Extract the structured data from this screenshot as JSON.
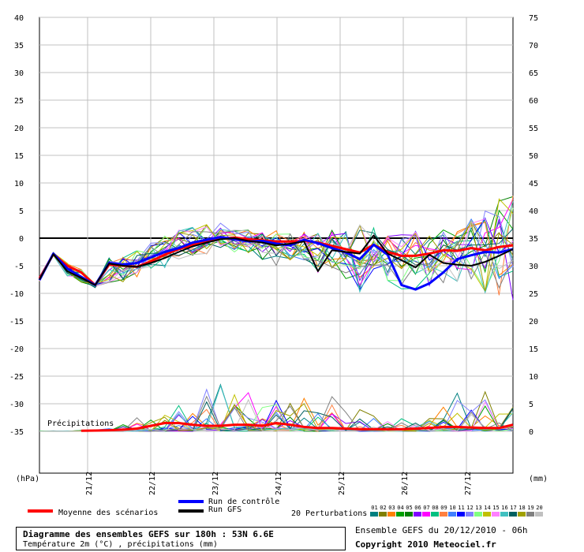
{
  "chart_data": {
    "type": "line",
    "left_axis": {
      "label": "(hPa)",
      "ticks": [
        40,
        35,
        30,
        25,
        20,
        15,
        10,
        5,
        0,
        -5,
        -10,
        -15,
        -20,
        -25,
        -30,
        -35
      ],
      "range": [
        -35,
        40
      ]
    },
    "right_axis": {
      "label": "(mm)",
      "ticks": [
        75,
        70,
        65,
        60,
        55,
        50,
        45,
        40,
        35,
        30,
        25,
        20,
        15,
        10,
        5,
        0
      ],
      "range": [
        0,
        75
      ]
    },
    "x_labels": [
      "21/12",
      "22/12",
      "23/12",
      "24/12",
      "25/12",
      "26/12",
      "27/12"
    ],
    "x_step_hours": 6,
    "precip_label": "Précipitations",
    "series": [
      {
        "name": "Moyenne des scénarios",
        "kind": "temperature",
        "color": "#ff0000",
        "width": 3,
        "values": [
          -7.3,
          -2.9,
          -5.0,
          -6.2,
          -8.5,
          -4.8,
          -5.0,
          -5.2,
          -4.2,
          -3.0,
          -2.0,
          -1.2,
          -0.6,
          -0.1,
          0.1,
          -0.2,
          -0.4,
          -0.6,
          -0.6,
          -0.5,
          -0.8,
          -1.4,
          -2.0,
          -2.6,
          -1.2,
          -2.5,
          -3.2,
          -3.2,
          -2.8,
          -2.2,
          -2.3,
          -1.8,
          -2.2,
          -1.6,
          -1.3
        ]
      },
      {
        "name": "Run de contrôle",
        "kind": "temperature",
        "color": "#0000ff",
        "width": 3,
        "values": [
          -7.6,
          -2.8,
          -5.5,
          -7.0,
          -8.5,
          -4.5,
          -4.8,
          -4.5,
          -3.5,
          -2.5,
          -1.8,
          -0.8,
          -0.3,
          0.2,
          -0.2,
          -0.6,
          -0.5,
          -1.0,
          -1.3,
          -0.3,
          -0.9,
          -1.8,
          -2.6,
          -3.8,
          -1.2,
          -3.0,
          -8.5,
          -9.3,
          -8.2,
          -6.2,
          -3.8,
          -3.1,
          -2.5,
          -2.6,
          -2.0
        ]
      },
      {
        "name": "Run GFS",
        "kind": "temperature",
        "color": "#000000",
        "width": 2,
        "values": [
          -7.5,
          -2.9,
          -6.0,
          -7.2,
          -8.5,
          -4.6,
          -5.0,
          -5.2,
          -4.5,
          -3.6,
          -2.5,
          -1.5,
          -0.8,
          -0.2,
          0.0,
          -0.5,
          -0.8,
          -1.3,
          -1.0,
          -0.6,
          -6.0,
          -2.2,
          -2.5,
          -2.8,
          0.5,
          -2.8,
          -4.0,
          -5.3,
          -3.0,
          -4.5,
          -4.8,
          -5.0,
          -4.3,
          -3.2,
          -2.0
        ]
      },
      {
        "name": "Moyenne des scénarios",
        "kind": "precipitation",
        "color": "#ff0000",
        "width": 3,
        "values": [
          0.1,
          0.1,
          0.1,
          0.1,
          0.15,
          0.2,
          0.3,
          0.5,
          1.0,
          1.5,
          1.5,
          1.2,
          1.0,
          1.0,
          1.2,
          1.2,
          1.0,
          1.5,
          1.2,
          0.8,
          0.6,
          0.6,
          0.5,
          0.4,
          0.4,
          0.4,
          0.4,
          0.5,
          0.6,
          0.8,
          0.8,
          0.7,
          0.6,
          0.6,
          1.2
        ]
      }
    ],
    "perturbations": {
      "count": 20,
      "colors": [
        "#008080",
        "#808000",
        "#ff8000",
        "#00a000",
        "#008000",
        "#8000ff",
        "#ff00ff",
        "#00c080",
        "#ff8040",
        "#4080ff",
        "#0000ff",
        "#8080ff",
        "#80ff80",
        "#c0c000",
        "#ff80ff",
        "#40c0c0",
        "#006060",
        "#a0a000",
        "#808080",
        "#c0c0c0"
      ],
      "spread_temp": [
        [
          -7.8,
          -7.2
        ],
        [
          -3.2,
          -2.6
        ],
        [
          -7.0,
          -4.5
        ],
        [
          -8.0,
          -5.5
        ],
        [
          -9.0,
          -8.2
        ],
        [
          -8.0,
          -3.5
        ],
        [
          -8.5,
          -3.0
        ],
        [
          -7.0,
          -2.0
        ],
        [
          -6.0,
          -0.5
        ],
        [
          -5.5,
          0.5
        ],
        [
          -4.0,
          1.5
        ],
        [
          -3.5,
          2.0
        ],
        [
          -3.0,
          2.5
        ],
        [
          -2.5,
          2.8
        ],
        [
          -2.5,
          1.5
        ],
        [
          -3.0,
          1.5
        ],
        [
          -4.0,
          1.2
        ],
        [
          -5.0,
          1.5
        ],
        [
          -5.0,
          1.2
        ],
        [
          -4.0,
          1.2
        ],
        [
          -7.0,
          1.0
        ],
        [
          -6.0,
          1.5
        ],
        [
          -7.5,
          2.2
        ],
        [
          -10.0,
          2.5
        ],
        [
          -6.0,
          2.0
        ],
        [
          -8.0,
          1.8
        ],
        [
          -9.5,
          1.8
        ],
        [
          -10.0,
          1.5
        ],
        [
          -9.0,
          2.0
        ],
        [
          -9.0,
          2.0
        ],
        [
          -8.0,
          2.5
        ],
        [
          -8.5,
          3.5
        ],
        [
          -11.5,
          5.0
        ],
        [
          -11.0,
          8.0
        ],
        [
          -12.0,
          8.0
        ]
      ],
      "spread_precip": [
        [
          0,
          0.1
        ],
        [
          0,
          0.1
        ],
        [
          0,
          0.1
        ],
        [
          0,
          0.2
        ],
        [
          0,
          0.3
        ],
        [
          0,
          0.5
        ],
        [
          0,
          1.5
        ],
        [
          0,
          3.5
        ],
        [
          0,
          4.0
        ],
        [
          0,
          3.0
        ],
        [
          0,
          5.0
        ],
        [
          0,
          3.5
        ],
        [
          0,
          8.5
        ],
        [
          0,
          8.5
        ],
        [
          0,
          8.0
        ],
        [
          0,
          9.5
        ],
        [
          0,
          5.0
        ],
        [
          0,
          6.0
        ],
        [
          0,
          7.0
        ],
        [
          0,
          7.5
        ],
        [
          0,
          4.0
        ],
        [
          0,
          6.5
        ],
        [
          0,
          4.0
        ],
        [
          0,
          4.0
        ],
        [
          0,
          3.0
        ],
        [
          0,
          2.0
        ],
        [
          0,
          2.5
        ],
        [
          0,
          2.5
        ],
        [
          0,
          2.5
        ],
        [
          0,
          5.0
        ],
        [
          0,
          7.0
        ],
        [
          0,
          7.0
        ],
        [
          0,
          9.0
        ],
        [
          0,
          6.0
        ],
        [
          0,
          8.5
        ]
      ]
    }
  },
  "legend": {
    "mean_label": "Moyenne des scénarios",
    "control_label": "Run de contrôle",
    "gfs_label": "Run GFS",
    "perturbations_label": "20 Perturbations",
    "perturbation_numbers": [
      "01",
      "02",
      "03",
      "04",
      "05",
      "06",
      "07",
      "08",
      "09",
      "10",
      "11",
      "12",
      "13",
      "14",
      "15",
      "16",
      "17",
      "18",
      "19",
      "20"
    ],
    "mean_color": "#ff0000",
    "control_color": "#0000ff",
    "gfs_color": "#000000"
  },
  "info": {
    "title": "Diagramme des ensembles GEFS sur 180h : 53N 6.6E",
    "subtitle": "Température 2m (°C) , précipitations (mm)",
    "ensemble": "Ensemble GEFS du 20/12/2010 - 06h",
    "copyright": "Copyright 2010 Meteociel.fr"
  }
}
